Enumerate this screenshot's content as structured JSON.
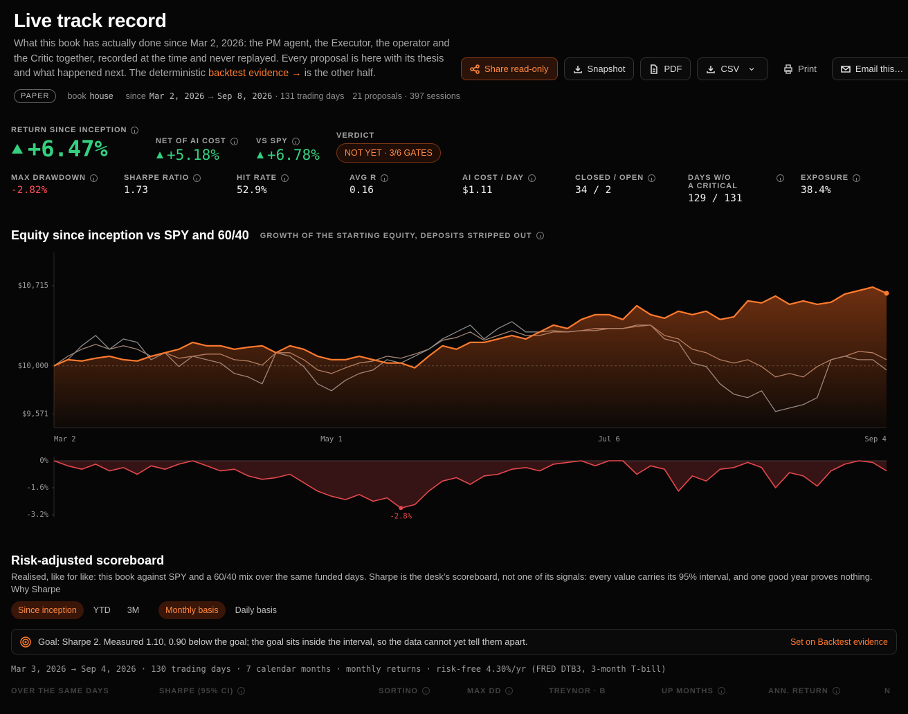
{
  "header": {
    "title": "Live track record",
    "description": [
      "What this book has actually done since Mar 2, 2026: the PM agent, the Executor, the operator and the Critic together, recorded at the time and never replayed. Every proposal is here with its thesis and what happened next. The deterministic ",
      " is the other half."
    ],
    "link": "backtest evidence →"
  },
  "actions": [
    "Share read-only",
    "Snapshot",
    "PDF",
    "CSV",
    "Print",
    "Email this…"
  ],
  "meta": {
    "mode": "PAPER",
    "book_label": "book",
    "book": "house",
    "since_label": "since",
    "start": "Mar 2, 2026",
    "arrow": "→",
    "end": "Sep 8, 2026",
    "days": "· 131 trading days",
    "counts": "21 proposals · 397 sessions"
  },
  "headline": [
    {
      "label": "RETURN SINCE INCEPTION",
      "value": "+6.47%"
    },
    {
      "label": "NET OF AI COST",
      "value": "+5.18%"
    },
    {
      "label": "VS SPY",
      "value": "+6.78%"
    }
  ],
  "verdict": {
    "label": "VERDICT",
    "value": "NOT YET · 3/6 GATES"
  },
  "metrics": [
    {
      "label": "MAX DRAWDOWN",
      "value": "-2.82%"
    },
    {
      "label": "SHARPE RATIO",
      "value": "1.73"
    },
    {
      "label": "HIT RATE",
      "value": "52.9%"
    },
    {
      "label": "AVG R",
      "value": "0.16"
    },
    {
      "label": "AI COST / DAY",
      "value": "$1.11"
    },
    {
      "label": "CLOSED / OPEN",
      "value": "34 / 2"
    },
    {
      "label": "DAYS W/O",
      "label2": "A CRITICAL",
      "value": "129 / 131"
    },
    {
      "label": "EXPOSURE",
      "value": "38.4%"
    }
  ],
  "chart_data": [
    {
      "type": "line",
      "title": "Equity since inception vs SPY and 60/40",
      "subtitle": "GROWTH OF THE STARTING EQUITY, DEPOSITS STRIPPED OUT",
      "categories": [
        "Mar 2",
        null,
        null,
        null,
        null,
        null,
        null,
        null,
        null,
        null,
        null,
        null,
        null,
        null,
        null,
        null,
        null,
        null,
        null,
        null,
        "May 1",
        null,
        null,
        null,
        null,
        null,
        null,
        null,
        null,
        null,
        null,
        null,
        null,
        null,
        null,
        null,
        null,
        null,
        null,
        null,
        "Jul 6",
        null,
        null,
        null,
        null,
        null,
        null,
        null,
        null,
        null,
        null,
        null,
        null,
        null,
        null,
        null,
        null,
        null,
        null,
        null,
        "Sep 4"
      ],
      "series": [
        {
          "color": "#a38474",
          "values": [
            10000,
            10086,
            10148,
            10191,
            10148,
            10179,
            10148,
            10086,
            10117,
            10068,
            10086,
            10105,
            10105,
            10055,
            10043,
            10006,
            10117,
            10117,
            10055,
            9963,
            9932,
            9982,
            10025,
            10043,
            10086,
            10068,
            10105,
            10148,
            10228,
            10253,
            10302,
            10228,
            10271,
            10314,
            10271,
            10271,
            10302,
            10302,
            10314,
            10333,
            10333,
            10333,
            10351,
            10363,
            10271,
            10240,
            10148,
            10117,
            10055,
            10025,
            10055,
            9994,
            9901,
            9932,
            9901,
            9994,
            10055,
            10086,
            10129,
            10117,
            10055
          ]
        },
        {
          "color": "#8c8c8c",
          "values": [
            10000,
            10055,
            10179,
            10271,
            10148,
            10240,
            10209,
            10055,
            10117,
            9994,
            10086,
            10055,
            10025,
            9932,
            9901,
            9840,
            10117,
            10086,
            9994,
            9840,
            9778,
            9871,
            9932,
            9963,
            10055,
            10025,
            10086,
            10148,
            10240,
            10302,
            10363,
            10240,
            10333,
            10394,
            10302,
            10302,
            10314,
            10302,
            10314,
            10314,
            10333,
            10333,
            10363,
            10363,
            10240,
            10209,
            10025,
            9994,
            9840,
            9747,
            9717,
            9778,
            9593,
            9624,
            9655,
            9717,
            10055,
            10086,
            10055,
            10055,
            9963
          ]
        },
        {
          "color": "#ff7a2e",
          "fill": true,
          "values": [
            10000,
            10055,
            10043,
            10068,
            10086,
            10055,
            10043,
            10086,
            10117,
            10148,
            10209,
            10179,
            10179,
            10148,
            10166,
            10179,
            10117,
            10179,
            10148,
            10086,
            10055,
            10055,
            10086,
            10055,
            10025,
            10025,
            9982,
            10086,
            10179,
            10148,
            10209,
            10209,
            10240,
            10271,
            10240,
            10302,
            10363,
            10333,
            10413,
            10456,
            10456,
            10413,
            10536,
            10456,
            10425,
            10487,
            10456,
            10487,
            10413,
            10437,
            10579,
            10561,
            10622,
            10548,
            10579,
            10548,
            10567,
            10640,
            10671,
            10702,
            10647
          ]
        }
      ],
      "ylim": [
        9450,
        11010
      ],
      "yticks": [
        {
          "value": 10715,
          "label": "$10,715"
        },
        {
          "value": 10000,
          "label": "$10,000"
        },
        {
          "value": 9571,
          "label": "$9,571"
        }
      ],
      "baseline": 10000
    },
    {
      "type": "area",
      "color": "#e5484d",
      "values": [
        0,
        -0.3,
        -0.5,
        -0.2,
        -0.6,
        -0.4,
        -0.8,
        -0.3,
        -0.5,
        -0.2,
        0,
        -0.3,
        -0.6,
        -0.5,
        -0.9,
        -1.1,
        -1.0,
        -0.8,
        -1.3,
        -1.8,
        -2.1,
        -2.3,
        -2.0,
        -2.4,
        -2.2,
        -2.8,
        -2.6,
        -1.8,
        -1.2,
        -1.0,
        -1.4,
        -0.9,
        -0.8,
        -0.5,
        -0.4,
        -0.6,
        -0.2,
        -0.1,
        0,
        -0.3,
        0,
        0,
        -0.8,
        -0.3,
        -0.5,
        -1.8,
        -0.9,
        -1.2,
        -0.5,
        -0.4,
        -0.1,
        -0.4,
        -1.6,
        -0.7,
        -0.9,
        -1.5,
        -0.6,
        -0.2,
        0,
        -0.1,
        -0.6
      ],
      "value_labels": [
        null,
        null,
        null,
        null,
        null,
        null,
        null,
        null,
        null,
        null,
        null,
        null,
        null,
        null,
        null,
        null,
        null,
        null,
        null,
        null,
        null,
        null,
        null,
        null,
        null,
        "-2.8%",
        null,
        null,
        null,
        null,
        null,
        null,
        null,
        null,
        null,
        null,
        null,
        null,
        null,
        null,
        null,
        null,
        null,
        null,
        null,
        null,
        null,
        null,
        null,
        null,
        null,
        null,
        null,
        null,
        null,
        null,
        null,
        null,
        null,
        null,
        null
      ],
      "ylim": [
        -3.2,
        0
      ],
      "yticks": [
        {
          "value": 0,
          "label": "0%"
        },
        {
          "value": -1.6,
          "label": "-1.6%"
        },
        {
          "value": -3.2,
          "label": "-3.2%"
        }
      ]
    }
  ],
  "scoreboard": {
    "title": "Risk-adjusted scoreboard",
    "text": "Realised, like for like: this book against SPY and a 60/40 mix over the same funded days. Sharpe is the desk’s scoreboard, not one of its signals: every value carries its 95% interval, and one good year proves nothing.",
    "link": "Why Sharpe",
    "periods": [
      "Since inception",
      "YTD",
      "3M"
    ],
    "bases": [
      "Monthly basis",
      "Daily basis"
    ],
    "active_period": 0,
    "active_basis": 0,
    "goal": "Goal: Sharpe 2. Measured 1.10, 0.90 below the goal; the goal sits inside the interval, so the data cannot yet tell them apart.",
    "goal_action": "Set on Backtest evidence",
    "window": "Mar 3, 2026 → Sep 4, 2026 · 130 trading days · 7 calendar months · monthly returns · risk-free 4.30%/yr (FRED DTB3, 3-month T-bill)",
    "columns": [
      "OVER THE SAME DAYS",
      "SHARPE (95% CI)",
      "SORTINO",
      "MAX DD",
      "TREYNOR · B",
      "UP MONTHS",
      "ANN. RETURN",
      "N"
    ]
  }
}
